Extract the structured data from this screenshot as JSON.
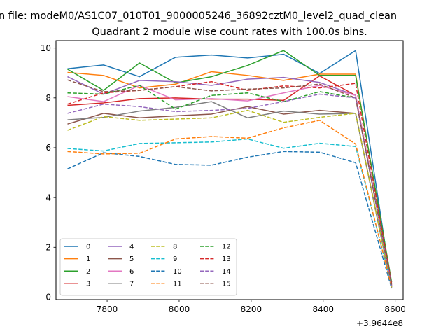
{
  "chart_data": {
    "type": "line",
    "suptitle": "n file: modeM0/AS1C07_010T01_9000005246_36892cztM0_level2_quad_clean",
    "title": "Quadrant 2 module wise count rates with 100.0s bins.",
    "xlabel": "",
    "ylabel": "",
    "x_offset_label": "+3.9644e8",
    "x": [
      7690,
      7790,
      7890,
      7990,
      8090,
      8190,
      8290,
      8390,
      8490,
      8590
    ],
    "xlim": [
      7658,
      8622
    ],
    "ylim": [
      -0.1,
      10.3
    ],
    "xticks": [
      7800,
      8000,
      8200,
      8400,
      8600
    ],
    "yticks": [
      0,
      2,
      4,
      6,
      8,
      10
    ],
    "grid": false,
    "legend_position": "lower-left",
    "legend_columns": 4,
    "series": [
      {
        "name": "0",
        "color": "#1f77b4",
        "dash": "solid",
        "values": [
          9.17,
          9.32,
          8.85,
          9.63,
          9.72,
          9.6,
          9.75,
          8.98,
          9.9,
          0.38
        ]
      },
      {
        "name": "1",
        "color": "#ff7f0e",
        "dash": "solid",
        "values": [
          9.02,
          8.9,
          8.4,
          8.55,
          9.05,
          8.9,
          8.7,
          8.95,
          8.95,
          0.45
        ]
      },
      {
        "name": "2",
        "color": "#2ca02c",
        "dash": "solid",
        "values": [
          9.15,
          8.3,
          9.4,
          8.6,
          8.85,
          9.3,
          9.9,
          8.9,
          8.9,
          0.6
        ]
      },
      {
        "name": "3",
        "color": "#d62728",
        "dash": "solid",
        "values": [
          7.7,
          7.8,
          7.97,
          8.0,
          7.95,
          7.95,
          7.9,
          8.88,
          8.1,
          0.5
        ]
      },
      {
        "name": "4",
        "color": "#9467bd",
        "dash": "solid",
        "values": [
          8.85,
          8.15,
          8.7,
          8.65,
          8.5,
          8.75,
          8.82,
          8.62,
          8.1,
          0.45
        ]
      },
      {
        "name": "5",
        "color": "#8c564b",
        "dash": "solid",
        "values": [
          6.95,
          7.38,
          7.2,
          7.28,
          7.35,
          7.65,
          7.35,
          7.5,
          7.38,
          0.4
        ]
      },
      {
        "name": "6",
        "color": "#e377c2",
        "dash": "solid",
        "values": [
          8.05,
          7.85,
          8.5,
          7.92,
          7.97,
          7.88,
          8.2,
          8.5,
          8.1,
          0.5
        ]
      },
      {
        "name": "7",
        "color": "#7f7f7f",
        "dash": "solid",
        "values": [
          7.12,
          7.22,
          7.47,
          7.62,
          7.85,
          7.2,
          7.47,
          7.35,
          7.38,
          0.35
        ]
      },
      {
        "name": "8",
        "color": "#bcbd22",
        "dash": "dashed",
        "values": [
          6.7,
          7.25,
          7.1,
          7.15,
          7.2,
          7.5,
          7.02,
          7.22,
          7.38,
          0.4
        ]
      },
      {
        "name": "9",
        "color": "#17becf",
        "dash": "dashed",
        "values": [
          5.97,
          5.87,
          6.17,
          6.2,
          6.23,
          6.35,
          5.98,
          6.18,
          6.05,
          0.45
        ]
      },
      {
        "name": "10",
        "color": "#1f77b4",
        "dash": "dashed",
        "values": [
          5.15,
          5.8,
          5.65,
          5.33,
          5.3,
          5.62,
          5.85,
          5.82,
          5.4,
          0.35
        ]
      },
      {
        "name": "11",
        "color": "#ff7f0e",
        "dash": "dashed",
        "values": [
          5.85,
          5.75,
          5.78,
          6.35,
          6.45,
          6.38,
          6.8,
          7.1,
          6.15,
          0.4
        ]
      },
      {
        "name": "12",
        "color": "#2ca02c",
        "dash": "dashed",
        "values": [
          8.2,
          8.15,
          8.5,
          7.55,
          8.1,
          8.2,
          7.85,
          8.25,
          8.0,
          0.5
        ]
      },
      {
        "name": "13",
        "color": "#d62728",
        "dash": "dashed",
        "values": [
          7.75,
          8.2,
          8.3,
          8.45,
          8.65,
          8.3,
          8.48,
          8.4,
          8.58,
          0.55
        ]
      },
      {
        "name": "14",
        "color": "#9467bd",
        "dash": "dashed",
        "values": [
          7.38,
          7.75,
          7.65,
          7.45,
          7.5,
          7.58,
          7.85,
          8.15,
          8.0,
          0.45
        ]
      },
      {
        "name": "15",
        "color": "#8c564b",
        "dash": "dashed",
        "values": [
          8.72,
          8.25,
          8.3,
          8.45,
          8.28,
          8.35,
          8.4,
          8.55,
          8.0,
          0.5
        ]
      }
    ]
  }
}
